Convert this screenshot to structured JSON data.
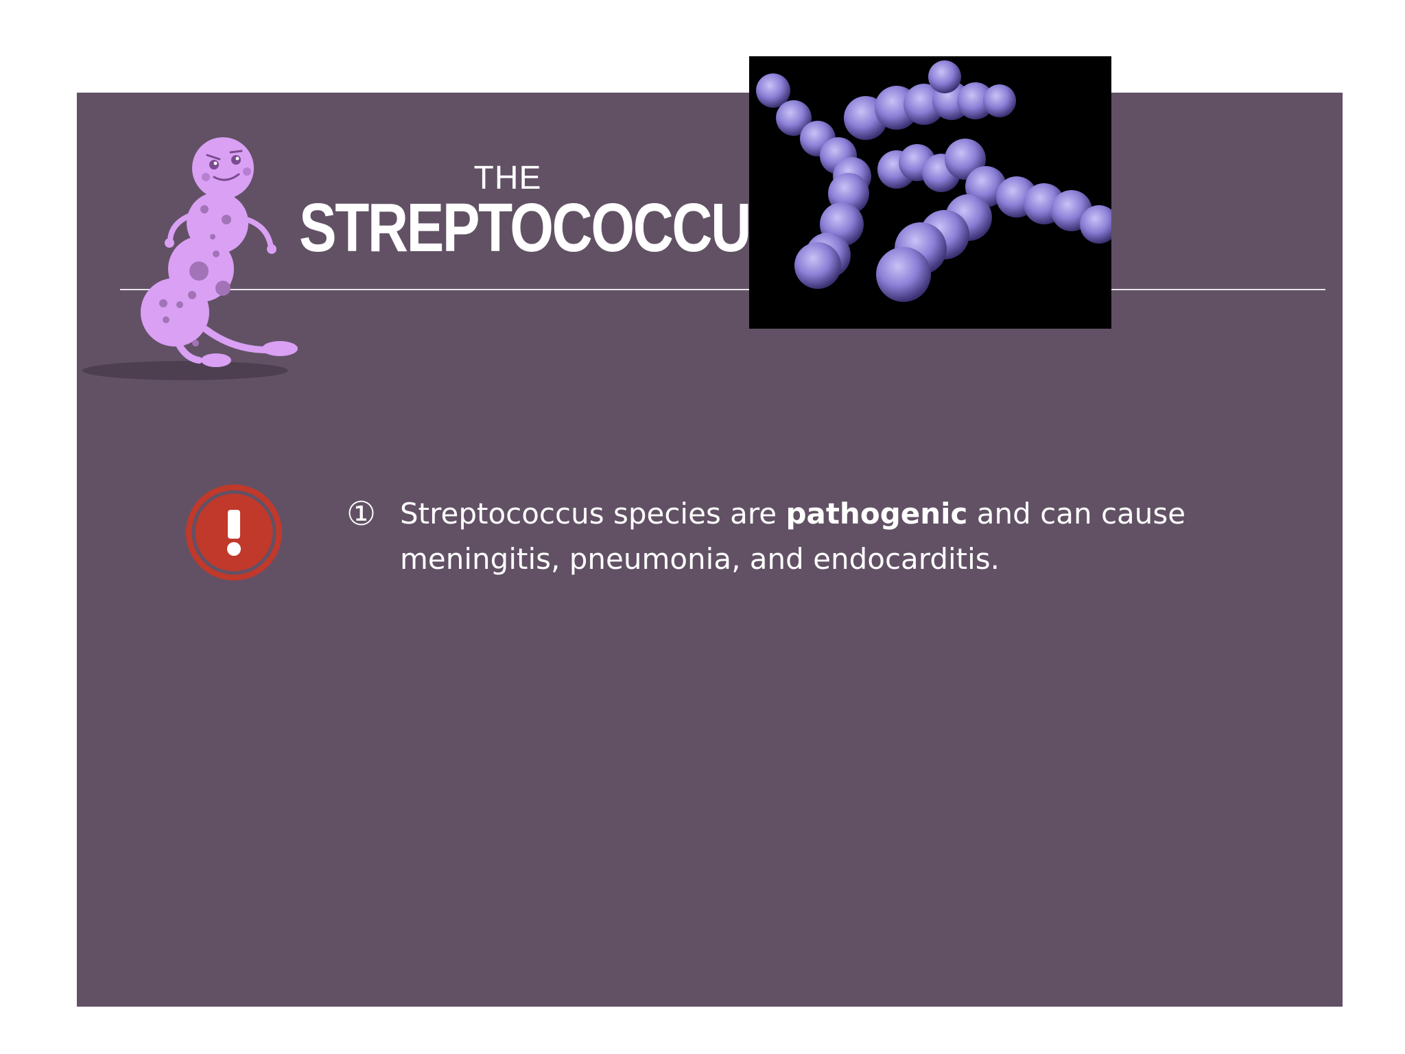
{
  "slide": {
    "title_prefix": "THE",
    "title": "STREPTOCOCCUS"
  },
  "bullet": {
    "marker": "①",
    "text_before": "Streptococcus species are ",
    "text_bold": "pathogenic",
    "text_after": " and can cause meningitis, pneumonia, and endocarditis."
  },
  "colors": {
    "panel": "#625165",
    "warning": "#c0392b",
    "mascot": "#d9a0f4",
    "bacteria": "#8a7fd6"
  },
  "icons": {
    "warning": "exclamation-circle-icon",
    "mascot": "bacteria-mascot"
  }
}
